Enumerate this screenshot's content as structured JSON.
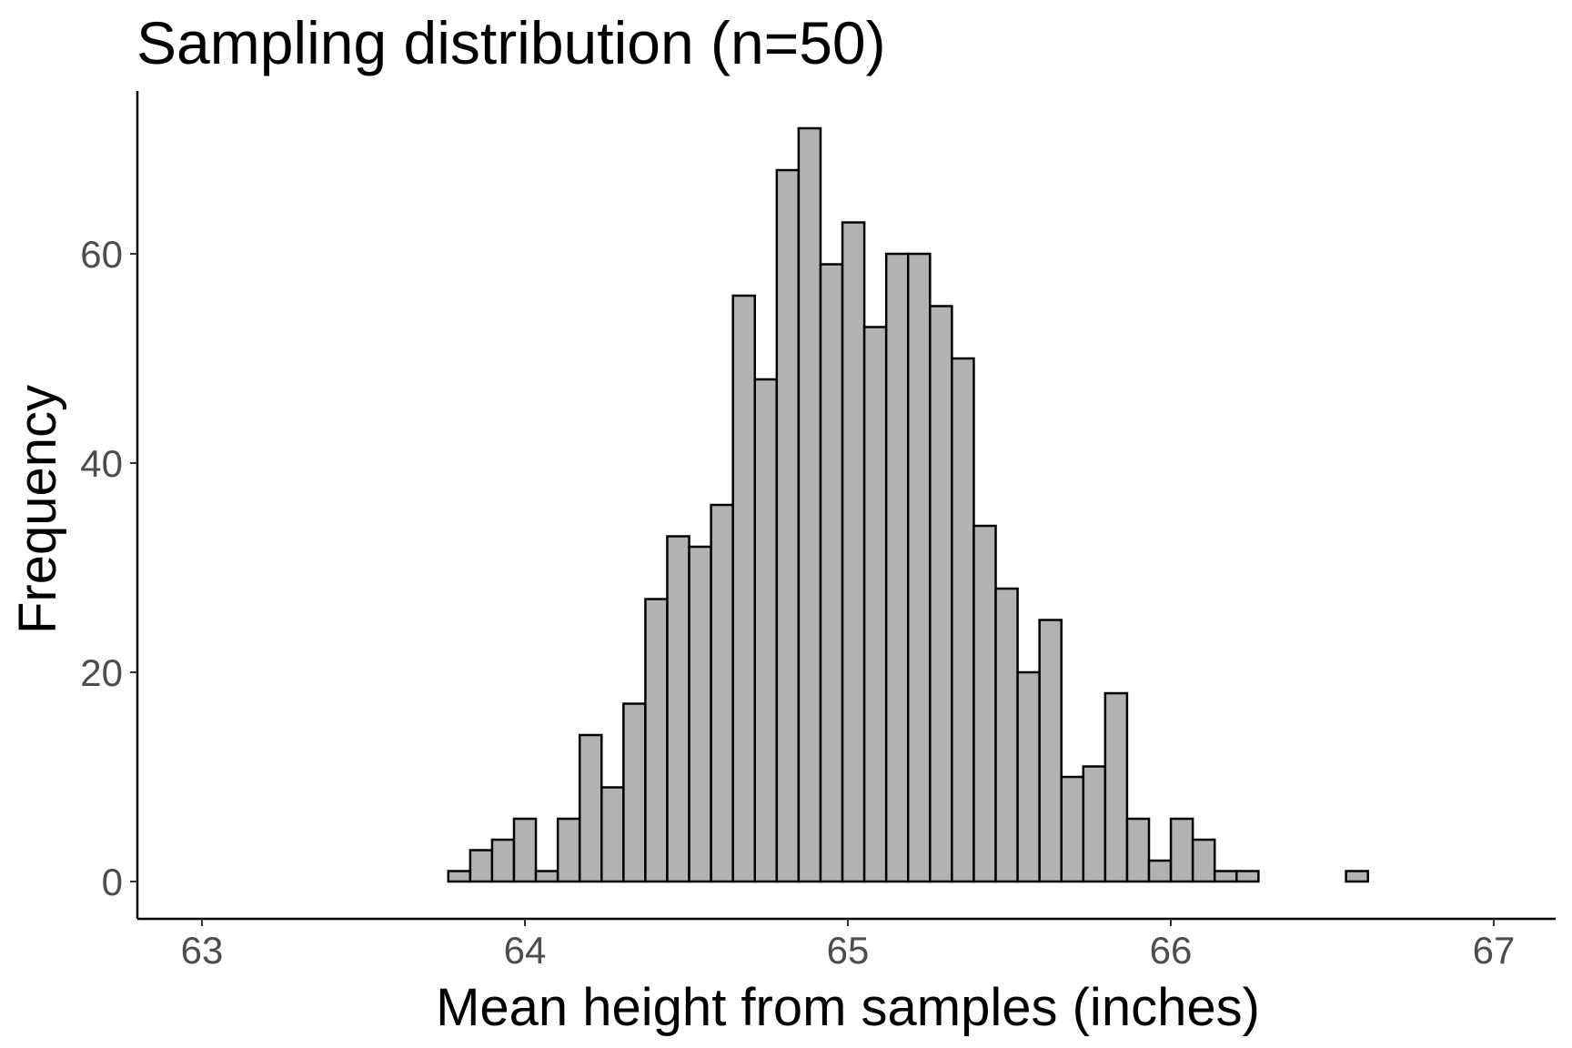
{
  "chart_data": {
    "type": "bar",
    "subtype": "histogram",
    "title": "Sampling distribution (n=50)",
    "xlabel": "Mean height from samples (inches)",
    "ylabel": "Frequency",
    "xlim": [
      62.97,
      67.07
    ],
    "ylim": [
      -3.5,
      76
    ],
    "xticks": [
      63,
      64,
      65,
      66,
      67
    ],
    "xtick_labels": [
      "63",
      "64",
      "65",
      "66",
      "67"
    ],
    "yticks": [
      0,
      20,
      40,
      60
    ],
    "ytick_labels": [
      "0",
      "20",
      "40",
      "60"
    ],
    "bin_start": 63.017,
    "bin_width": 0.0678,
    "counts": [
      0,
      0,
      0,
      0,
      0,
      0,
      0,
      0,
      0,
      0,
      0,
      1,
      3,
      4,
      6,
      1,
      6,
      14,
      9,
      17,
      27,
      33,
      32,
      36,
      56,
      48,
      68,
      72,
      59,
      63,
      53,
      60,
      60,
      55,
      50,
      34,
      28,
      20,
      25,
      10,
      11,
      18,
      6,
      2,
      6,
      4,
      1,
      1,
      0,
      0,
      0,
      0,
      1,
      0,
      0,
      0,
      0,
      0
    ],
    "grid": false,
    "legend": "none",
    "colors": {
      "bar_fill": "#b2b2b2",
      "bar_stroke": "#000000",
      "axis": "#000000",
      "tick_label": "#4d4d4d"
    }
  }
}
